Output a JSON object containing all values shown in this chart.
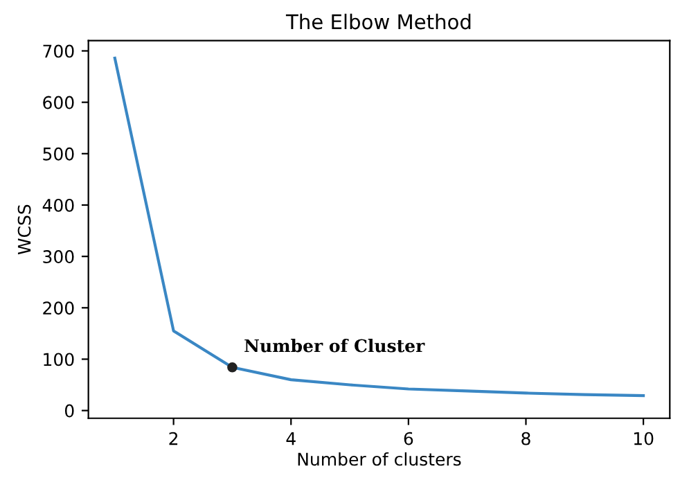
{
  "chart_data": {
    "type": "line",
    "title": "The Elbow Method",
    "xlabel": "Number of clusters",
    "ylabel": "WCSS",
    "x": [
      1,
      2,
      3,
      4,
      5,
      6,
      7,
      8,
      9,
      10
    ],
    "series": [
      {
        "color": "#3a87c4",
        "marker": "none",
        "values": [
          686,
          155,
          84,
          60,
          50,
          42,
          38,
          34,
          31,
          29
        ]
      },
      {
        "type": "scatter",
        "marker": "circle",
        "color": "#222222",
        "x": [
          3
        ],
        "values": [
          84
        ]
      }
    ],
    "annotations": [
      {
        "text": "Number of Cluster",
        "x": 3,
        "y": 84
      }
    ],
    "xlim": [
      0.55,
      10.45
    ],
    "ylim": [
      -15,
      720
    ],
    "xticks": [
      2,
      4,
      6,
      8,
      10
    ],
    "yticks": [
      0,
      100,
      200,
      300,
      400,
      500,
      600,
      700
    ],
    "line_style": "solid"
  }
}
